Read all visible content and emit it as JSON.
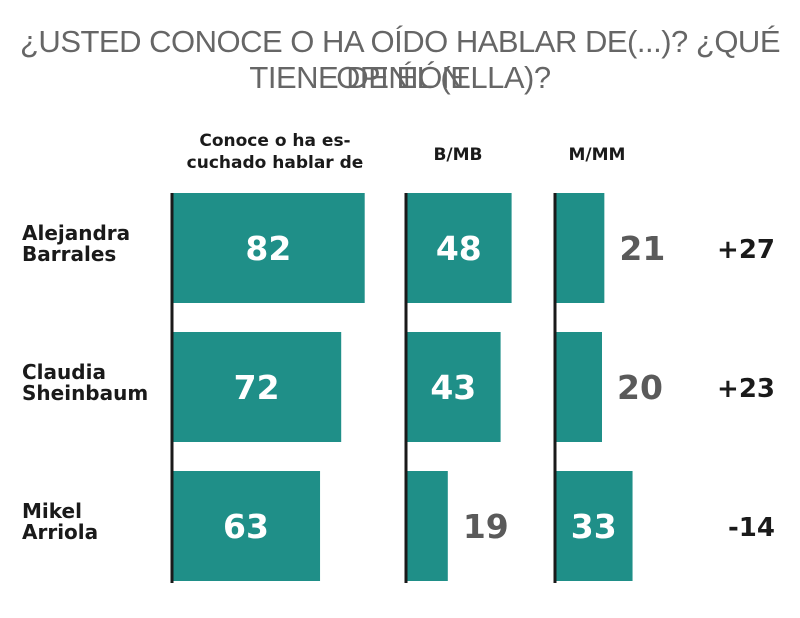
{
  "title_lines": [
    "¿USTED CONOCE O HA OÍDO HABLAR DE(...)? ¿QUÉ OPINIÓN",
    "TIENE DE ÉL (ELLA)?"
  ],
  "chart_data": {
    "type": "bar",
    "orientation": "horizontal",
    "title": "¿USTED CONOCE O HA OÍDO HABLAR DE(...)? ¿QUÉ OPINIÓN TIENE DE ÉL (ELLA)?",
    "categories": [
      {
        "name": "Alejandra Barrales",
        "lines": [
          "Alejandra",
          "Barrales"
        ]
      },
      {
        "name": "Claudia Sheinbaum",
        "lines": [
          "Claudia",
          "Sheinbaum"
        ]
      },
      {
        "name": "Mikel Arriola",
        "lines": [
          "Mikel",
          "Arriola"
        ]
      }
    ],
    "series": [
      {
        "name": "Conoce o ha escuchado hablar de",
        "header_lines": [
          "Conoce o ha es-",
          "cuchado hablar de"
        ],
        "values": [
          82,
          72,
          63
        ]
      },
      {
        "name": "B/MB",
        "header_lines": [
          "B/MB"
        ],
        "values": [
          48,
          43,
          19
        ]
      },
      {
        "name": "M/MM",
        "header_lines": [
          "M/MM"
        ],
        "values": [
          21,
          20,
          33
        ]
      }
    ],
    "net": [
      "+27",
      "+23",
      "-14"
    ],
    "colors": {
      "bar": "#1f8f88",
      "axis": "#1a1a1a",
      "title": "#666666"
    }
  }
}
